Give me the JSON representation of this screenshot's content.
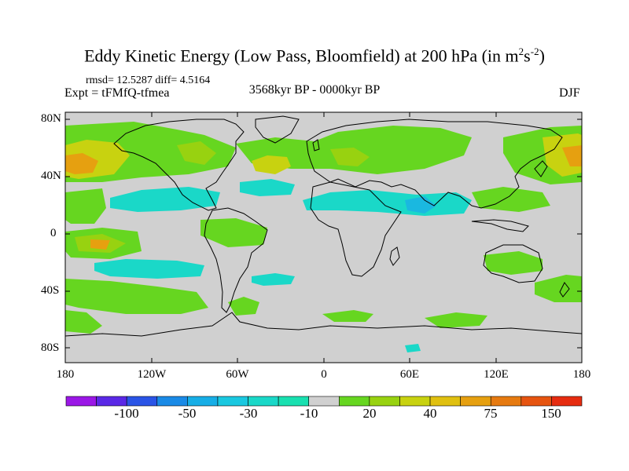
{
  "title": {
    "main": "Eddy Kinetic Energy (Low Pass, Bloomfield) at 200 hPa (in m",
    "sup1": "2",
    "mid": "s",
    "sup2": "-2",
    "end": ")"
  },
  "stats_line": "rmsd= 12.5287 diff= 4.5164",
  "experiment": "Expt = tFMfQ-tfmea",
  "period": "3568kyr BP - 0000kyr BP",
  "season": "DJF",
  "lat_labels": [
    "80N",
    "40N",
    "0",
    "40S",
    "80S"
  ],
  "lon_labels": [
    "180",
    "120W",
    "60W",
    "0",
    "60E",
    "120E",
    "180"
  ],
  "colorbar": {
    "labels": [
      "-100",
      "-50",
      "-30",
      "-10",
      "20",
      "40",
      "75",
      "150"
    ],
    "colors": [
      "#9b17e6",
      "#5a28e6",
      "#2a54e6",
      "#1a8ae6",
      "#17aee6",
      "#1ac8e0",
      "#1ad8c8",
      "#19e0b0",
      "#d0d0d0",
      "#66d620",
      "#98d210",
      "#c8d210",
      "#e0c010",
      "#e6a010",
      "#e67a10",
      "#e65410",
      "#e62c10"
    ]
  },
  "colors": {
    "background": "#d0d0d0",
    "green": "#66d620",
    "lightgreen": "#98d210",
    "yellow": "#c8d210",
    "orange": "#e6a010",
    "cyan": "#1ac8e0",
    "teal": "#1ad8c8"
  }
}
